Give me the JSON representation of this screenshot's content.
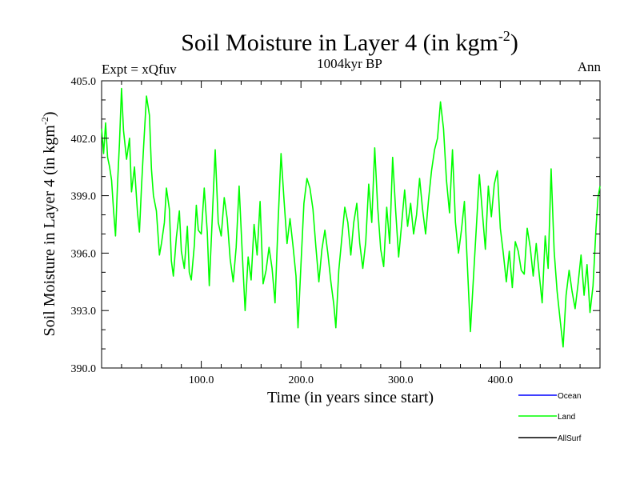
{
  "chart_data": {
    "type": "line",
    "title": "Soil Moisture in Layer 4 (in kgm",
    "title_sup": "-2",
    "title_close": ")",
    "subtitle": "1004kyr BP",
    "left_label": "Expt = xQfuv",
    "right_label": "Ann",
    "xlabel": "Time (in years since start)",
    "ylabel": "Soil Moisture in Layer 4 (in kgm",
    "ylabel_sup": "-2",
    "ylabel_close": ")",
    "xlim": [
      0,
      500
    ],
    "ylim": [
      390,
      405
    ],
    "x_ticks": [
      100,
      200,
      300,
      400
    ],
    "x_tick_labels": [
      "100.0",
      "200.0",
      "300.0",
      "400.0"
    ],
    "y_ticks": [
      390,
      393,
      396,
      399,
      402,
      405
    ],
    "y_tick_labels": [
      "390.0",
      "393.0",
      "396.0",
      "399.0",
      "402.0",
      "405.0"
    ],
    "legend": [
      {
        "name": "Ocean",
        "color": "#0000ff"
      },
      {
        "name": "Land",
        "color": "#00ff00"
      },
      {
        "name": "AllSurf",
        "color": "#000000"
      }
    ],
    "series": [
      {
        "name": "Land",
        "color": "#00ff00",
        "key_points": [
          [
            0,
            402.5
          ],
          [
            2,
            401.2
          ],
          [
            4,
            402.8
          ],
          [
            6,
            401.0
          ],
          [
            8,
            400.5
          ],
          [
            10,
            399.8
          ],
          [
            12,
            398.2
          ],
          [
            14,
            396.9
          ],
          [
            16,
            399.6
          ],
          [
            18,
            401.8
          ],
          [
            20,
            404.6
          ],
          [
            22,
            402.4
          ],
          [
            25,
            400.9
          ],
          [
            28,
            402.0
          ],
          [
            30,
            399.2
          ],
          [
            33,
            400.5
          ],
          [
            36,
            398.1
          ],
          [
            38,
            397.1
          ],
          [
            40,
            399.4
          ],
          [
            42,
            401.4
          ],
          [
            45,
            404.2
          ],
          [
            48,
            403.2
          ],
          [
            50,
            400.4
          ],
          [
            52,
            399.0
          ],
          [
            55,
            398.2
          ],
          [
            58,
            395.9
          ],
          [
            60,
            396.5
          ],
          [
            63,
            397.6
          ],
          [
            65,
            399.4
          ],
          [
            68,
            398.3
          ],
          [
            70,
            395.6
          ],
          [
            72,
            394.8
          ],
          [
            75,
            396.8
          ],
          [
            78,
            398.2
          ],
          [
            80,
            396.1
          ],
          [
            83,
            395.2
          ],
          [
            86,
            397.4
          ],
          [
            88,
            395.0
          ],
          [
            90,
            394.6
          ],
          [
            93,
            396.4
          ],
          [
            95,
            398.5
          ],
          [
            97,
            397.2
          ],
          [
            100,
            397.0
          ],
          [
            103,
            399.4
          ],
          [
            106,
            397.1
          ],
          [
            108,
            394.3
          ],
          [
            111,
            397.8
          ],
          [
            114,
            401.4
          ],
          [
            117,
            397.6
          ],
          [
            120,
            396.9
          ],
          [
            123,
            398.9
          ],
          [
            126,
            397.8
          ],
          [
            129,
            395.7
          ],
          [
            132,
            394.5
          ],
          [
            135,
            396.3
          ],
          [
            138,
            399.5
          ],
          [
            141,
            396.1
          ],
          [
            144,
            393.0
          ],
          [
            147,
            395.8
          ],
          [
            150,
            394.6
          ],
          [
            153,
            397.5
          ],
          [
            156,
            395.9
          ],
          [
            159,
            398.7
          ],
          [
            162,
            394.4
          ],
          [
            165,
            395.1
          ],
          [
            168,
            396.3
          ],
          [
            171,
            395.2
          ],
          [
            174,
            393.4
          ],
          [
            177,
            397.5
          ],
          [
            180,
            401.2
          ],
          [
            183,
            398.8
          ],
          [
            186,
            396.5
          ],
          [
            189,
            397.8
          ],
          [
            192,
            396.4
          ],
          [
            195,
            394.8
          ],
          [
            197,
            392.1
          ],
          [
            200,
            395.4
          ],
          [
            203,
            398.6
          ],
          [
            206,
            399.9
          ],
          [
            209,
            399.4
          ],
          [
            212,
            398.3
          ],
          [
            215,
            396.3
          ],
          [
            218,
            394.5
          ],
          [
            221,
            396.2
          ],
          [
            224,
            397.2
          ],
          [
            227,
            396.0
          ],
          [
            230,
            394.5
          ],
          [
            233,
            393.3
          ],
          [
            235,
            392.1
          ],
          [
            238,
            395.1
          ],
          [
            241,
            396.8
          ],
          [
            244,
            398.4
          ],
          [
            247,
            397.6
          ],
          [
            250,
            395.9
          ],
          [
            253,
            397.6
          ],
          [
            256,
            398.6
          ],
          [
            259,
            396.5
          ],
          [
            262,
            395.2
          ],
          [
            265,
            396.6
          ],
          [
            268,
            399.6
          ],
          [
            271,
            397.6
          ],
          [
            274,
            401.5
          ],
          [
            277,
            398.4
          ],
          [
            280,
            396.2
          ],
          [
            283,
            395.3
          ],
          [
            286,
            398.4
          ],
          [
            289,
            396.5
          ],
          [
            292,
            401.0
          ],
          [
            295,
            398.2
          ],
          [
            298,
            395.8
          ],
          [
            301,
            397.5
          ],
          [
            304,
            399.3
          ],
          [
            307,
            397.4
          ],
          [
            310,
            398.6
          ],
          [
            313,
            397.0
          ],
          [
            316,
            398.0
          ],
          [
            319,
            399.9
          ],
          [
            322,
            398.3
          ],
          [
            325,
            397.0
          ],
          [
            328,
            398.8
          ],
          [
            331,
            400.3
          ],
          [
            334,
            401.4
          ],
          [
            337,
            402.0
          ],
          [
            340,
            403.9
          ],
          [
            343,
            402.5
          ],
          [
            346,
            399.8
          ],
          [
            349,
            398.1
          ],
          [
            352,
            401.4
          ],
          [
            355,
            397.6
          ],
          [
            358,
            396.0
          ],
          [
            361,
            397.2
          ],
          [
            364,
            398.7
          ],
          [
            367,
            395.3
          ],
          [
            370,
            391.9
          ],
          [
            373,
            394.7
          ],
          [
            376,
            397.4
          ],
          [
            379,
            400.1
          ],
          [
            382,
            398.1
          ],
          [
            385,
            396.2
          ],
          [
            388,
            399.5
          ],
          [
            391,
            397.9
          ],
          [
            394,
            399.6
          ],
          [
            397,
            400.3
          ],
          [
            400,
            397.3
          ],
          [
            403,
            396.0
          ],
          [
            406,
            394.5
          ],
          [
            409,
            396.1
          ],
          [
            412,
            394.2
          ],
          [
            415,
            396.6
          ],
          [
            418,
            396.1
          ],
          [
            421,
            395.1
          ],
          [
            424,
            394.9
          ],
          [
            427,
            397.3
          ],
          [
            430,
            396.3
          ],
          [
            433,
            394.8
          ],
          [
            436,
            396.5
          ],
          [
            439,
            394.9
          ],
          [
            442,
            393.4
          ],
          [
            445,
            396.9
          ],
          [
            448,
            395.2
          ],
          [
            451,
            400.4
          ],
          [
            454,
            396.1
          ],
          [
            457,
            394.0
          ],
          [
            460,
            392.5
          ],
          [
            463,
            391.1
          ],
          [
            466,
            393.8
          ],
          [
            469,
            395.1
          ],
          [
            472,
            394.0
          ],
          [
            475,
            393.1
          ],
          [
            478,
            394.4
          ],
          [
            481,
            395.9
          ],
          [
            484,
            393.8
          ],
          [
            487,
            395.4
          ],
          [
            490,
            392.9
          ],
          [
            493,
            394.3
          ],
          [
            496,
            397.3
          ],
          [
            498,
            398.9
          ],
          [
            500,
            399.5
          ]
        ]
      }
    ]
  }
}
